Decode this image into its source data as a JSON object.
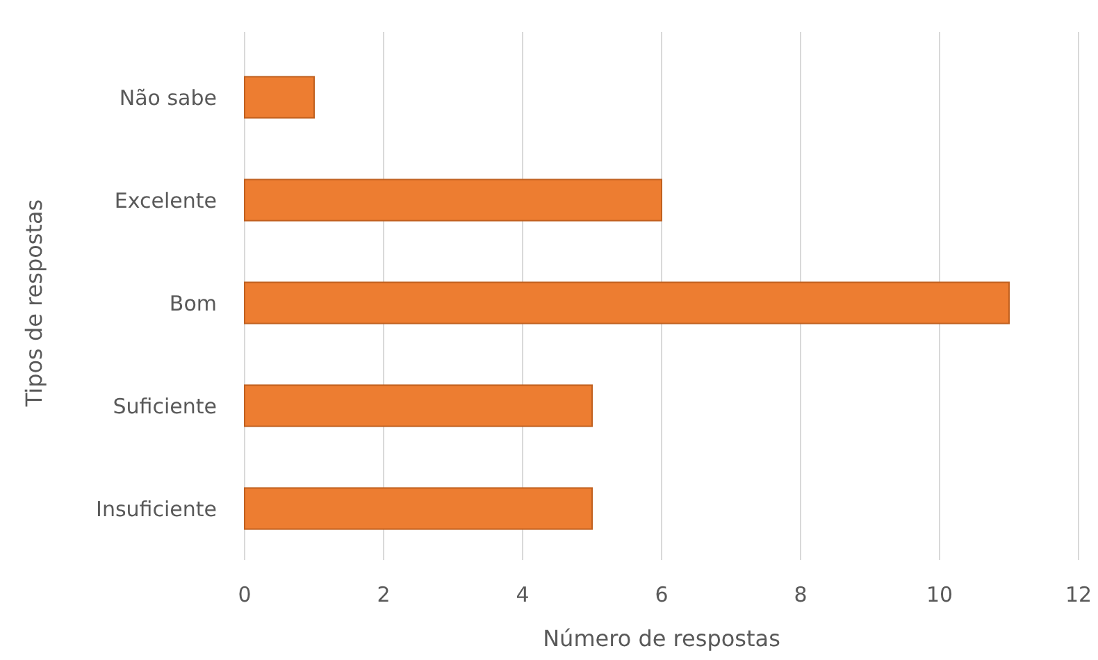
{
  "chart_data": {
    "type": "bar",
    "orientation": "horizontal",
    "xlabel": "Número de respostas",
    "ylabel": "Tipos de respostas",
    "categories": [
      "Não sabe",
      "Excelente",
      "Bom",
      "Suficiente",
      "Insuficiente"
    ],
    "values": [
      1,
      6,
      11,
      5,
      5
    ],
    "color": "#ed7d31",
    "xlim": [
      0,
      12
    ],
    "xticks": [
      0,
      2,
      4,
      6,
      8,
      10,
      12
    ],
    "grid": "x"
  }
}
